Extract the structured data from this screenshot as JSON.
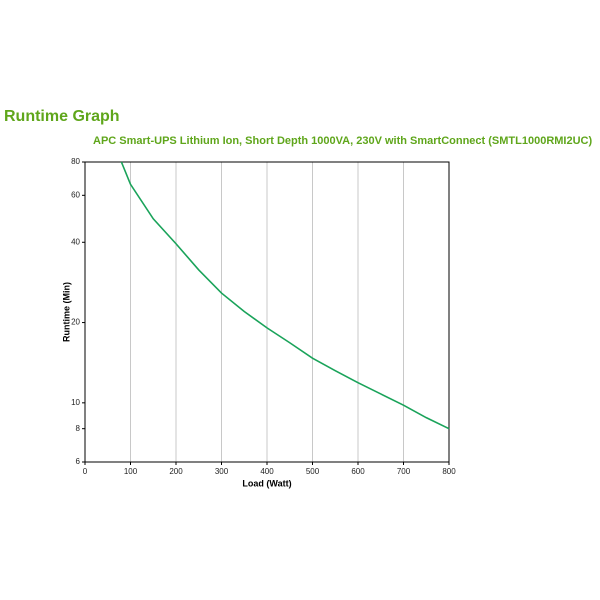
{
  "chart_data": {
    "type": "line",
    "title": "Runtime Graph",
    "subtitle": "APC Smart-UPS Lithium Ion, Short Depth 1000VA, 230V with SmartConnect (SMTL1000RMI2UC)",
    "xlabel": "Load (Watt)",
    "ylabel": "Runtime (Min)",
    "x": [
      80,
      100,
      150,
      200,
      250,
      300,
      350,
      400,
      450,
      500,
      550,
      600,
      650,
      700,
      750,
      800
    ],
    "series": [
      {
        "color": "#1aa35a",
        "values": [
          80,
          66,
          49,
          39.5,
          31.5,
          25.8,
          22,
          19.1,
          16.8,
          14.7,
          13.2,
          11.9,
          10.8,
          9.8,
          8.8,
          8.0
        ]
      }
    ],
    "xlim": [
      0,
      800
    ],
    "xticks": [
      0,
      100,
      200,
      300,
      400,
      500,
      600,
      700,
      800
    ],
    "ylim": [
      6,
      80
    ],
    "yticks": [
      6,
      8,
      10,
      20,
      40,
      60,
      80
    ],
    "yscale": "log",
    "grid": "x"
  }
}
